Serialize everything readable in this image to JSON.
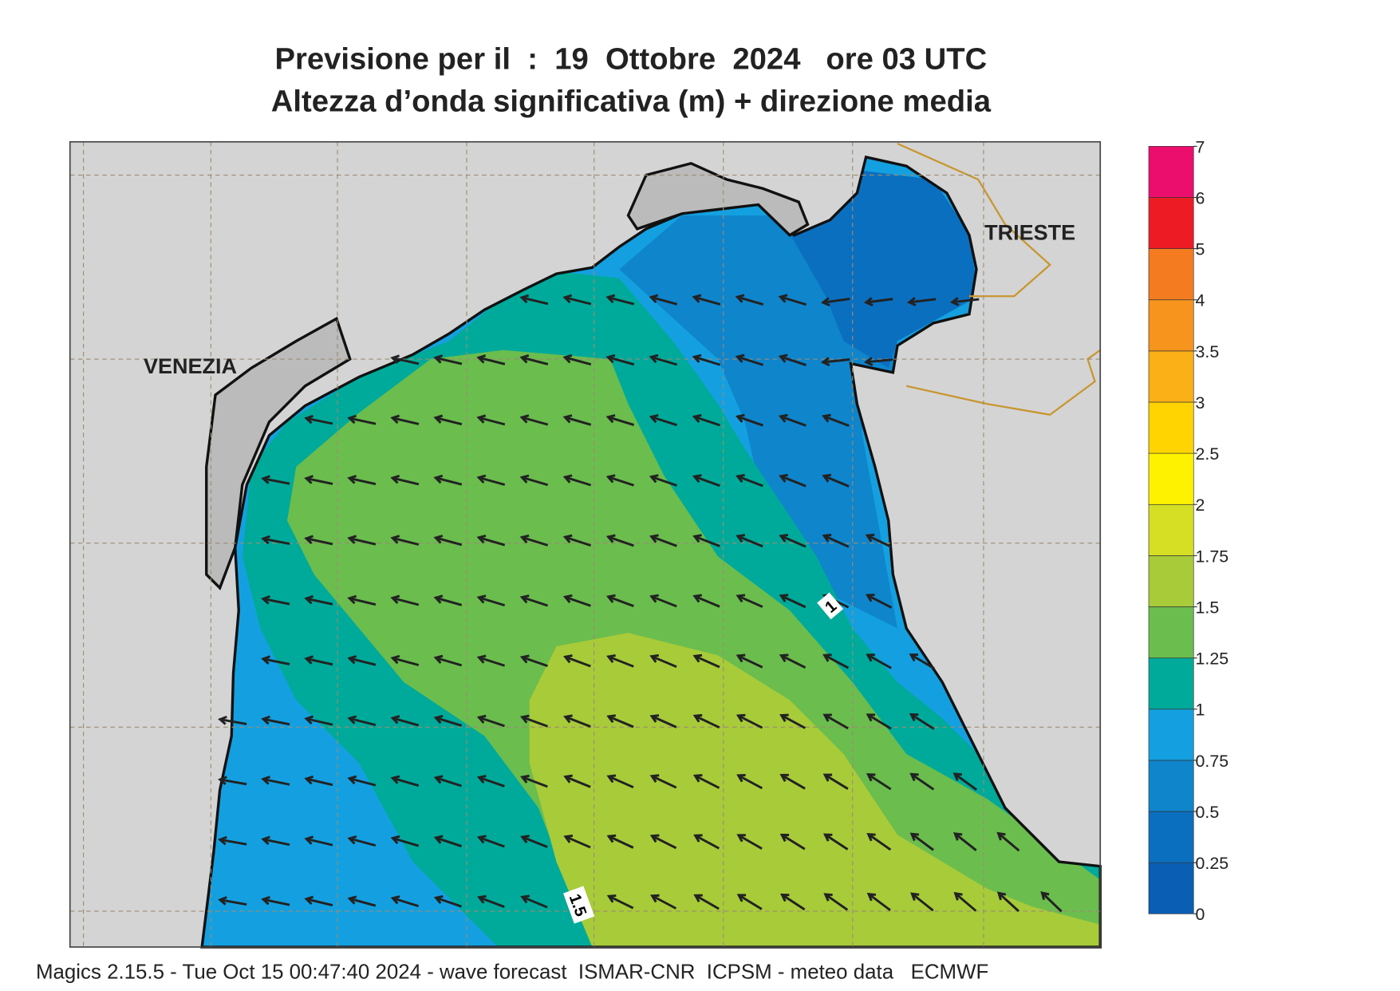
{
  "title": [
    "Previsione per il  :  19  Ottobre  2024   ore 03 UTC",
    "Altezza d’onda significativa (m) + direzione media"
  ],
  "places": {
    "venezia": "VENEZIA",
    "trieste": "TRIESTE"
  },
  "contour_labels": [
    "1",
    "1.5"
  ],
  "colorbar": {
    "ticks": [
      0,
      0.25,
      0.5,
      0.75,
      1,
      1.25,
      1.5,
      1.75,
      2,
      2.5,
      3,
      3.5,
      4,
      5,
      6,
      7
    ],
    "colors": [
      "#0a5fb4",
      "#0b6fbf",
      "#0f85cc",
      "#14a0e0",
      "#00aa9a",
      "#6bbd4e",
      "#a8cb3a",
      "#d6df24",
      "#fff200",
      "#ffd400",
      "#fbb017",
      "#f7941d",
      "#f47b20",
      "#ed1c24",
      "#ec0e6c"
    ]
  },
  "footer": "Magics 2.15.5 - Tue Oct 15 00:47:40 2024 - wave forecast  ISMAR-CNR  ICPSM - meteo data   ECMWF"
}
